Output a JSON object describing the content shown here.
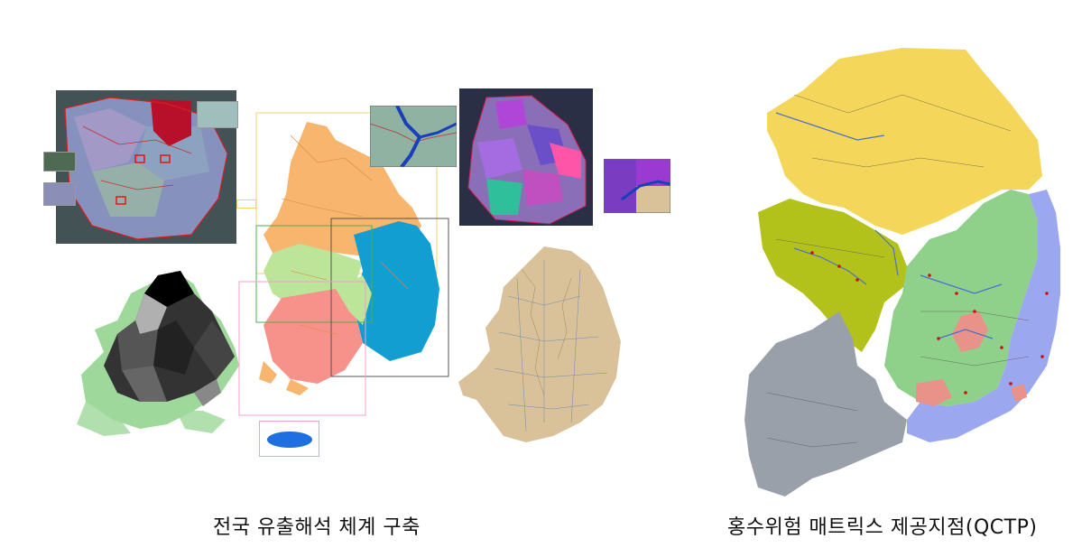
{
  "captions": {
    "left": "전국 유출해석 체계 구축",
    "right": "홍수위험 매트릭스 제공지점(QCTP)"
  },
  "colors": {
    "region_north": "#f4d75a",
    "region_west": "#b3c21a",
    "region_southwest": "#9aa0aa",
    "region_central": "#8fd08a",
    "region_east": "#9ba7ef",
    "highlight_red": "#e8928a",
    "orange": "#f7b56e",
    "light_green": "#bde59a",
    "pink": "#f7928a",
    "cyan": "#129ed0",
    "jeju_blue": "#1f6fe0",
    "tan": "#d9c29a",
    "purple": "#9b4fd8",
    "crimson": "#b8102a"
  }
}
